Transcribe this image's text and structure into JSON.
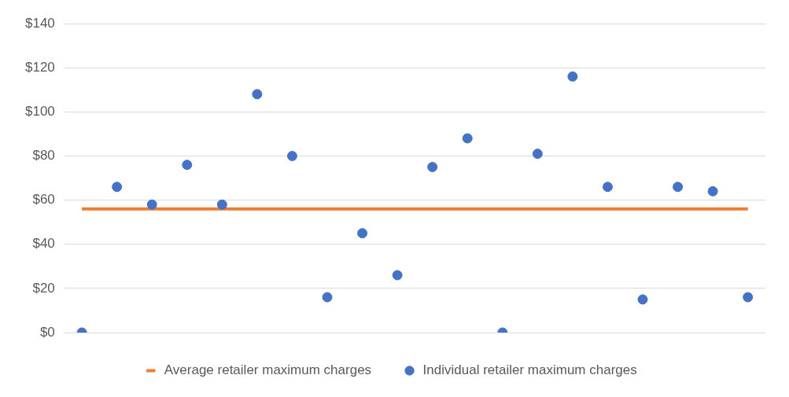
{
  "chart_data": {
    "type": "scatter",
    "categories": [
      null,
      null,
      null,
      null,
      null,
      null,
      null,
      null,
      null,
      null,
      null,
      null,
      null,
      null,
      null,
      null,
      null,
      null,
      null,
      null
    ],
    "series": [
      {
        "name": "Average retailer maximum charges",
        "type": "line",
        "marker": "none",
        "color": "#ed7d31",
        "values": [
          56,
          56,
          56,
          56,
          56,
          56,
          56,
          56,
          56,
          56,
          56,
          56,
          56,
          56,
          56,
          56,
          56,
          56,
          56,
          56
        ]
      },
      {
        "name": "Individual retailer maximum charges",
        "type": "scatter",
        "marker": "circle",
        "color": "#4472c4",
        "values": [
          0,
          66,
          58,
          76,
          58,
          108,
          80,
          16,
          45,
          26,
          75,
          88,
          0,
          81,
          116,
          66,
          15,
          66,
          64,
          16
        ]
      }
    ],
    "ylim": [
      0,
      140
    ],
    "yticks": [
      {
        "value": 0,
        "label": "$0"
      },
      {
        "value": 20,
        "label": "$20"
      },
      {
        "value": 40,
        "label": "$40"
      },
      {
        "value": 60,
        "label": "$60"
      },
      {
        "value": 80,
        "label": "$80"
      },
      {
        "value": 100,
        "label": "$100"
      },
      {
        "value": 120,
        "label": "$120"
      },
      {
        "value": 140,
        "label": "$140"
      }
    ],
    "grid": "y",
    "legend": "bottom",
    "tick_labels": "y",
    "line_style": "solid"
  }
}
